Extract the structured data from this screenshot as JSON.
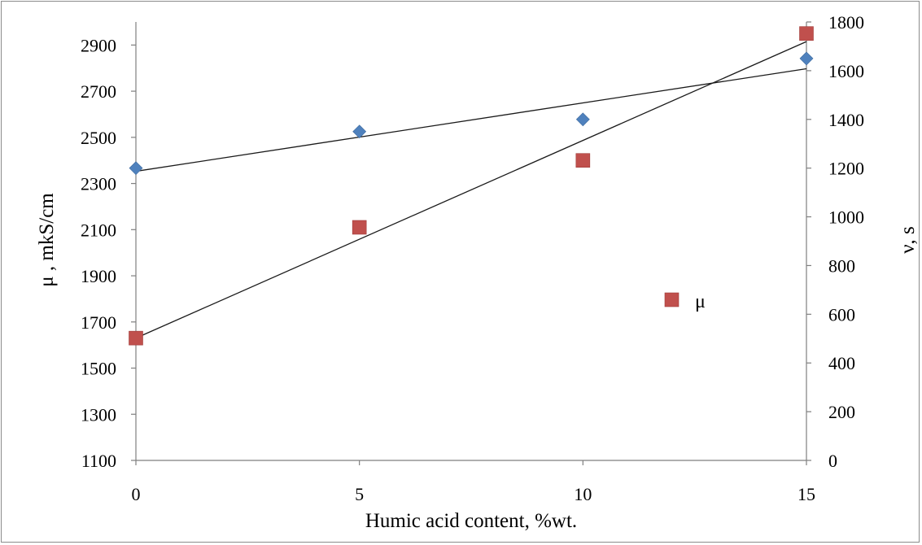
{
  "chart_data": {
    "type": "scatter",
    "xlabel": "Humic acid content, %wt.",
    "ylabel_left": "μ , mkS/cm",
    "ylabel_right": "ν, s",
    "x_ticks": [
      0,
      5,
      10,
      15
    ],
    "y_left_ticks": [
      1100,
      1300,
      1500,
      1700,
      1900,
      2100,
      2300,
      2500,
      2700,
      2900
    ],
    "y_right_ticks": [
      0,
      200,
      400,
      600,
      800,
      1000,
      1200,
      1400,
      1600,
      1800
    ],
    "xlim": [
      0,
      15
    ],
    "ylim_left": [
      1100,
      3000
    ],
    "ylim_right": [
      0,
      1800
    ],
    "grid": false,
    "legend_position": "right-middle",
    "series": [
      {
        "name": "μ",
        "axis": "left",
        "marker": "square",
        "color": "#c0504d",
        "x": [
          0,
          5,
          10,
          15
        ],
        "y": [
          1630,
          2110,
          2400,
          2950
        ],
        "trendline": {
          "x": [
            0,
            15
          ],
          "y": [
            1630,
            2915
          ]
        }
      },
      {
        "name": "",
        "axis": "right",
        "marker": "diamond",
        "color": "#4f81bd",
        "x": [
          0,
          5,
          10,
          15
        ],
        "y": [
          1200,
          1350,
          1400,
          1650
        ],
        "trendline": {
          "x": [
            0,
            15
          ],
          "y": [
            1187,
            1608
          ]
        }
      }
    ]
  }
}
